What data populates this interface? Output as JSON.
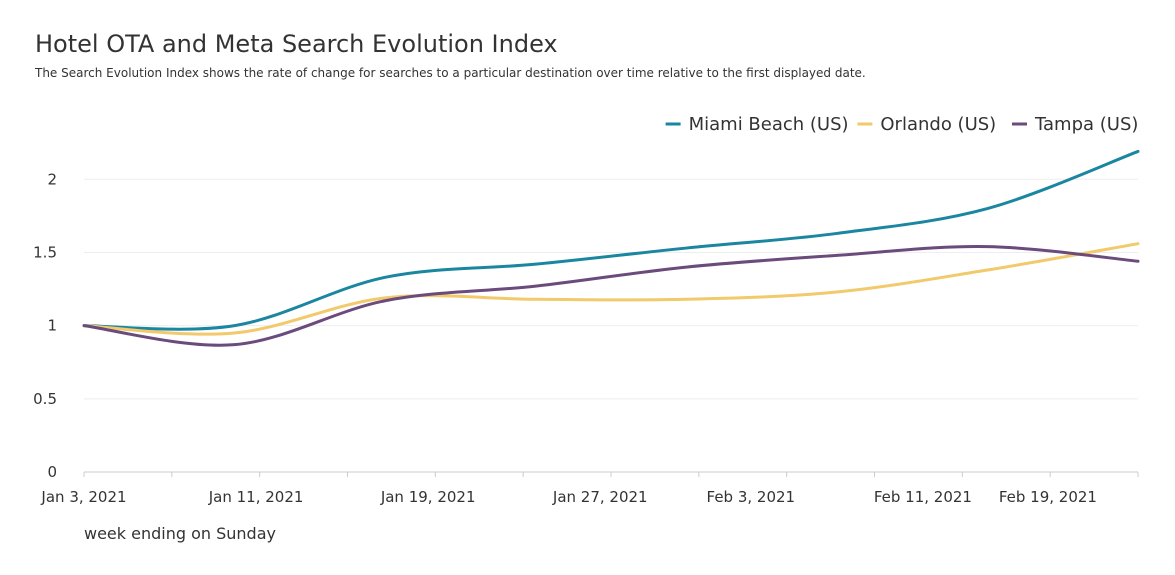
{
  "chart_data": {
    "type": "line",
    "title": "Hotel OTA and Meta Search Evolution Index",
    "subtitle": "The Search Evolution Index shows the rate of change for searches to a particular destination over time relative to the first displayed date.",
    "xlabel": "week ending on Sunday",
    "ylabel": "",
    "ylim": [
      0,
      2.2
    ],
    "yticks": [
      0,
      0.5,
      1,
      1.5,
      2
    ],
    "ytick_labels": [
      "0",
      "0.5",
      "1",
      "1.5",
      "2"
    ],
    "x": [
      "Jan 3, 2021",
      "Jan 10, 2021",
      "Jan 17, 2021",
      "Jan 24, 2021",
      "Jan 31, 2021",
      "Feb 7, 2021",
      "Feb 14, 2021",
      "Feb 21, 2021"
    ],
    "xticks": [
      "Jan 3, 2021",
      "Jan 11, 2021",
      "Jan 19, 2021",
      "Jan 27, 2021",
      "Feb 3, 2021",
      "Feb 11, 2021",
      "Feb 19, 2021"
    ],
    "grid": true,
    "legend_position": "top-right",
    "series": [
      {
        "name": "Miami Beach (US)",
        "color": "#1a86a0",
        "values": [
          1.0,
          1.0,
          1.33,
          1.42,
          1.53,
          1.63,
          1.8,
          2.19
        ]
      },
      {
        "name": "Orlando (US)",
        "color": "#f2c96b",
        "values": [
          1.0,
          0.95,
          1.19,
          1.18,
          1.18,
          1.23,
          1.38,
          1.56
        ]
      },
      {
        "name": "Tampa (US)",
        "color": "#6b4a7c",
        "values": [
          1.0,
          0.87,
          1.17,
          1.27,
          1.4,
          1.48,
          1.54,
          1.44
        ]
      }
    ]
  }
}
